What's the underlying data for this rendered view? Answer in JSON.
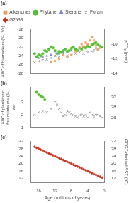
{
  "chart_data": [
    {
      "type": "scatter",
      "title": "(a)",
      "legend": "top",
      "grid": false,
      "tick_labels": "y",
      "ylabel": "δ¹³C of biomarkers (‰, Vs)",
      "y2label": "pCO₂ (ppm)",
      "xlim": [
        18,
        0
      ],
      "xticks": [
        16,
        12,
        8,
        4,
        0
      ],
      "ylim": [
        -28,
        -18
      ],
      "yticks": [
        -28,
        -26,
        -24,
        -22,
        -20,
        -18
      ],
      "y2lim": [
        -14,
        -8
      ],
      "y2ticks": [
        -14,
        -12,
        -10
      ],
      "series": [
        {
          "name": "Alkenones",
          "color": "#f0a060",
          "marker": "square",
          "axis": "y2",
          "x": [
            1.0,
            1.5,
            2.0,
            2.5,
            3.0,
            3.5,
            4.0,
            4.5,
            5.0,
            5.5,
            6.0,
            7.0,
            8.0,
            9.0,
            10.0,
            11.0,
            12.0,
            13.0
          ],
          "values": [
            -10.5,
            -10.8,
            -10.2,
            -9.5,
            -9.0,
            -9.5,
            -10.0,
            -9.8,
            -10.3,
            -10.0,
            -10.5,
            -11.0,
            -11.5,
            -11.8,
            -11.5,
            -12.0,
            -12.3,
            -12.5
          ]
        },
        {
          "name": "Phytane",
          "color": "#50c030",
          "marker": "circle",
          "x": [
            0.5,
            1.0,
            1.5,
            2.0,
            2.5,
            3.0,
            3.5,
            4.0,
            4.5,
            5.0,
            5.5,
            6.0,
            6.5,
            7.0,
            7.5,
            8.0,
            8.5,
            9.0,
            9.5,
            10.0,
            10.5,
            11.0,
            11.5,
            12.0,
            12.5,
            13.0,
            13.5,
            14.0,
            14.5,
            15.0,
            15.5,
            16.0,
            16.5,
            17.0
          ],
          "values": [
            -22.0,
            -21.8,
            -21.5,
            -21.0,
            -21.2,
            -21.5,
            -22.0,
            -21.8,
            -22.2,
            -22.0,
            -22.5,
            -22.2,
            -22.8,
            -22.5,
            -22.0,
            -22.3,
            -22.8,
            -23.0,
            -22.5,
            -22.8,
            -23.2,
            -23.0,
            -23.5,
            -22.8,
            -22.2,
            -22.0,
            -22.5,
            -23.0,
            -22.8,
            -23.5,
            -24.0,
            -23.8,
            -24.2,
            -23.5
          ]
        },
        {
          "name": "Sterane",
          "color": "#8080d0",
          "marker": "triangle",
          "x": [
            2.0,
            3.0,
            4.0,
            5.0,
            6.0,
            7.0,
            8.0,
            9.0,
            10.0,
            11.0,
            12.0,
            13.0,
            14.0,
            15.0,
            16.0
          ],
          "values": [
            -21.0,
            -21.5,
            -21.8,
            -22.0,
            -22.2,
            -22.5,
            -22.8,
            -23.0,
            -23.2,
            -23.5,
            -23.0,
            -23.8,
            -24.0,
            -24.2,
            -24.5
          ]
        },
        {
          "name": "Foram",
          "color": "#a0a0a0",
          "marker": "x",
          "x": [
            0.5,
            1.0,
            1.5,
            2.0,
            2.5,
            3.0,
            4.0,
            5.0,
            6.0,
            7.0,
            8.0,
            9.0,
            10.0,
            11.0,
            12.0,
            13.0,
            14.0,
            15.0,
            16.0,
            17.0
          ],
          "values": [
            -22.0,
            -22.2,
            -22.5,
            -22.3,
            -22.8,
            -23.0,
            -23.2,
            -23.5,
            -23.2,
            -23.5,
            -23.8,
            -24.0,
            -23.5,
            -24.2,
            -24.0,
            -24.5,
            -24.8,
            -25.0,
            -25.2,
            -25.5
          ]
        }
      ]
    },
    {
      "type": "scatter",
      "title": "(b)",
      "grid": false,
      "tick_labels": "y",
      "ylabel": "δ¹³C of planktonic foram infauna (‰, Vs)",
      "xlim": [
        18,
        0
      ],
      "xticks": [
        16,
        12,
        8,
        4,
        0
      ],
      "ylim": [
        1.0,
        4.2
      ],
      "yticks": [
        1.0,
        2.0,
        3.0
      ],
      "y2lim": [
        24,
        32
      ],
      "y2ticks": [
        26,
        28,
        30
      ],
      "series": [
        {
          "name": "Foram",
          "color": "#a0a0a0",
          "marker": "x",
          "x": [
            0.5,
            1.0,
            1.5,
            2.0,
            2.5,
            3.0,
            3.5,
            4.0,
            4.5,
            5.0,
            5.5,
            6.0,
            6.5,
            7.0,
            7.5,
            8.0,
            8.5,
            9.0,
            9.5,
            10.0,
            10.5,
            11.0,
            11.5,
            12.0,
            13.0,
            14.0,
            15.0,
            16.0,
            17.0
          ],
          "values": [
            1.8,
            1.9,
            2.0,
            2.1,
            1.9,
            2.0,
            2.2,
            1.8,
            2.0,
            1.9,
            2.1,
            2.0,
            1.8,
            1.9,
            2.0,
            2.1,
            2.2,
            2.3,
            2.0,
            1.9,
            2.2,
            2.5,
            2.8,
            3.0,
            2.5,
            2.2,
            2.3,
            2.2,
            2.0
          ]
        },
        {
          "name": "Phytane",
          "color": "#50c030",
          "marker": "circle",
          "x": [
            16.5,
            16.0,
            15.5,
            15.0,
            14.5
          ],
          "values": [
            3.8,
            3.6,
            3.5,
            3.4,
            3.2
          ]
        }
      ]
    },
    {
      "type": "scatter",
      "title": "(c)",
      "grid": false,
      "xlabel": "Age (millions of years)",
      "y2label": "GDGT-derived SST (°C)",
      "xlim": [
        18,
        0
      ],
      "xticks": [
        16,
        12,
        8,
        4,
        0
      ],
      "ylim": [
        10,
        32
      ],
      "yticks": [
        12,
        16,
        20,
        24,
        28,
        32
      ],
      "y2lim": [
        10,
        32
      ],
      "y2ticks": [
        12,
        16,
        20,
        24,
        28,
        32
      ],
      "series": [
        {
          "name": "G2/G3",
          "color": "#c83020",
          "marker": "diamond",
          "x": [
            0.5,
            1.0,
            1.5,
            2.0,
            2.5,
            3.0,
            3.5,
            4.0,
            4.5,
            5.0,
            5.5,
            6.0,
            6.5,
            7.0,
            7.5,
            8.0,
            8.5,
            9.0,
            9.5,
            10.0,
            10.5,
            11.0,
            11.5,
            12.0,
            12.5,
            13.0,
            13.5,
            14.0,
            14.5,
            15.0,
            15.5,
            16.0,
            16.5,
            17.0
          ],
          "values": [
            12.5,
            13.0,
            13.5,
            14.0,
            14.5,
            15.0,
            15.5,
            16.0,
            16.5,
            17.0,
            17.5,
            18.0,
            18.5,
            19.0,
            19.5,
            20.0,
            20.5,
            21.0,
            21.5,
            22.0,
            22.5,
            23.0,
            23.5,
            24.0,
            24.5,
            25.0,
            25.5,
            26.0,
            26.5,
            27.0,
            27.5,
            28.0,
            28.5,
            29.0
          ]
        }
      ]
    }
  ]
}
